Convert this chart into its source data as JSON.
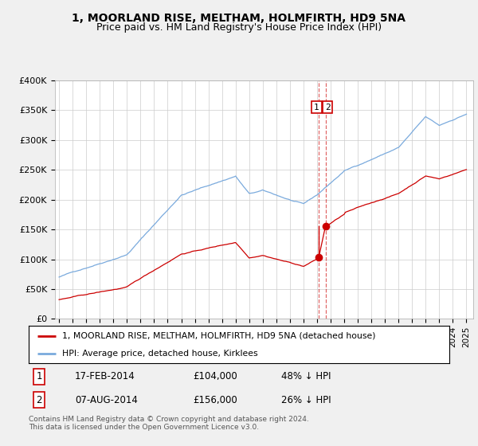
{
  "title": "1, MOORLAND RISE, MELTHAM, HOLMFIRTH, HD9 5NA",
  "subtitle": "Price paid vs. HM Land Registry's House Price Index (HPI)",
  "title_fontsize": 10,
  "subtitle_fontsize": 9,
  "bg_color": "#f0f0f0",
  "plot_bg_color": "#ffffff",
  "grid_color": "#cccccc",
  "hpi_color": "#7aaadd",
  "price_color": "#cc0000",
  "ylim": [
    0,
    400000
  ],
  "yticks": [
    0,
    50000,
    100000,
    150000,
    200000,
    250000,
    300000,
    350000,
    400000
  ],
  "ytick_labels": [
    "£0",
    "£50K",
    "£100K",
    "£150K",
    "£200K",
    "£250K",
    "£300K",
    "£350K",
    "£400K"
  ],
  "transaction1": {
    "date_num": 2014.12,
    "price": 104000,
    "label": "1",
    "date_str": "17-FEB-2014",
    "pct": "48%"
  },
  "transaction2": {
    "date_num": 2014.62,
    "price": 156000,
    "label": "2",
    "date_str": "07-AUG-2014",
    "pct": "26%"
  },
  "legend_label_property": "1, MOORLAND RISE, MELTHAM, HOLMFIRTH, HD9 5NA (detached house)",
  "legend_label_hpi": "HPI: Average price, detached house, Kirklees",
  "footer": "Contains HM Land Registry data © Crown copyright and database right 2024.\nThis data is licensed under the Open Government Licence v3.0."
}
